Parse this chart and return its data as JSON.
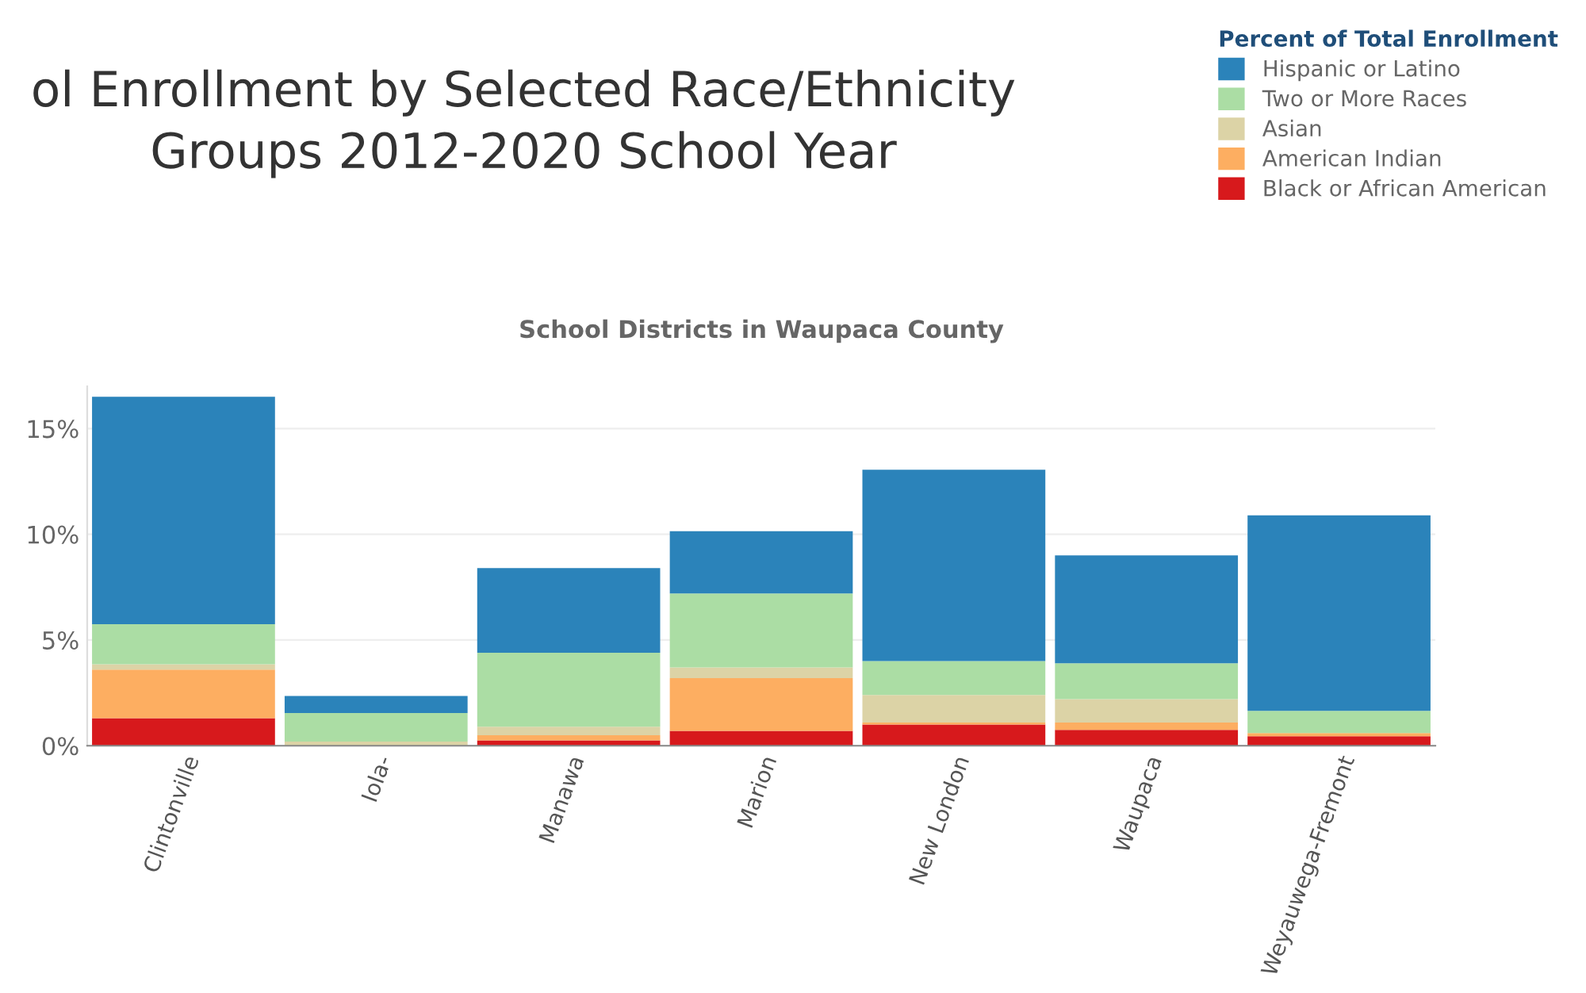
{
  "chart_data": {
    "type": "bar",
    "stacked": true,
    "title": "ol Enrollment by Selected Race/Ethnicity\nGroups 2012-2020 School Year",
    "subtitle": "School Districts in Waupaca County",
    "legend_title": "Percent of Total Enrollment",
    "categories": [
      "Clintonville",
      "Iola-",
      "Manawa",
      "Marion",
      "New London",
      "Waupaca",
      "Weyauwega-Fremont"
    ],
    "series": [
      {
        "name": "Black or African American",
        "color": "#d7191c",
        "values": [
          1.3,
          0,
          0.25,
          0.7,
          1.0,
          0.75,
          0.45
        ]
      },
      {
        "name": "American Indian",
        "color": "#fdae61",
        "values": [
          2.3,
          null,
          0.25,
          2.5,
          0.1,
          0.35,
          0.15
        ]
      },
      {
        "name": "Asian",
        "color": "#dcd3a6",
        "values": [
          0.25,
          0.2,
          0.4,
          0.5,
          1.3,
          1.1,
          null
        ]
      },
      {
        "name": "Two or More Races",
        "color": "#abdda4",
        "values": [
          1.9,
          1.35,
          3.5,
          3.5,
          1.6,
          1.7,
          1.05
        ]
      },
      {
        "name": "Hispanic or Latino",
        "color": "#2b83ba",
        "values": [
          10.75,
          0.8,
          4.0,
          2.95,
          9.05,
          5.1,
          9.25
        ]
      }
    ],
    "ylim": [
      0,
      17
    ],
    "yticks": [
      {
        "value": 0,
        "label": "0%"
      },
      {
        "value": 5,
        "label": "5%"
      },
      {
        "value": 10,
        "label": "10%"
      },
      {
        "value": 15,
        "label": "15%"
      }
    ],
    "grid": "y",
    "legend": "top right"
  }
}
